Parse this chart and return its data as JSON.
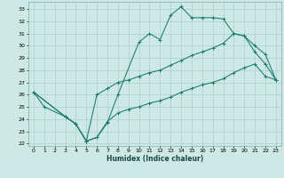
{
  "xlabel": "Humidex (Indice chaleur)",
  "bg_color": "#cde8e5",
  "grid_color": "#a8d0cc",
  "line_color": "#1a7a6e",
  "xlim": [
    -0.5,
    23.5
  ],
  "ylim": [
    21.8,
    33.6
  ],
  "yticks": [
    22,
    23,
    24,
    25,
    26,
    27,
    28,
    29,
    30,
    31,
    32,
    33
  ],
  "xticks": [
    0,
    1,
    2,
    3,
    4,
    5,
    6,
    7,
    8,
    9,
    10,
    11,
    12,
    13,
    14,
    15,
    16,
    17,
    18,
    19,
    20,
    21,
    22,
    23
  ],
  "line1_x": [
    0,
    1,
    3,
    4,
    5,
    6,
    7,
    8,
    10,
    11,
    12,
    13,
    14,
    15,
    16,
    17,
    18,
    19,
    20,
    21,
    22,
    23
  ],
  "line1_y": [
    26.2,
    25.0,
    24.2,
    23.6,
    22.2,
    22.5,
    23.7,
    26.0,
    30.3,
    31.0,
    30.5,
    32.5,
    33.2,
    32.3,
    32.3,
    32.3,
    32.2,
    31.0,
    30.8,
    30.0,
    29.3,
    27.2
  ],
  "line2_x": [
    0,
    3,
    4,
    5,
    6,
    7,
    8,
    9,
    10,
    11,
    12,
    13,
    14,
    15,
    16,
    17,
    18,
    19,
    20,
    21,
    22,
    23
  ],
  "line2_y": [
    26.2,
    24.2,
    23.6,
    22.2,
    26.0,
    26.5,
    27.0,
    27.2,
    27.5,
    27.8,
    28.0,
    28.4,
    28.8,
    29.2,
    29.5,
    29.8,
    30.2,
    31.0,
    30.8,
    29.5,
    28.5,
    27.2
  ],
  "line3_x": [
    0,
    3,
    4,
    5,
    6,
    7,
    8,
    9,
    10,
    11,
    12,
    13,
    14,
    15,
    16,
    17,
    18,
    19,
    20,
    21,
    22,
    23
  ],
  "line3_y": [
    26.2,
    24.2,
    23.6,
    22.2,
    22.5,
    23.8,
    24.5,
    24.8,
    25.0,
    25.3,
    25.5,
    25.8,
    26.2,
    26.5,
    26.8,
    27.0,
    27.3,
    27.8,
    28.2,
    28.5,
    27.5,
    27.2
  ]
}
